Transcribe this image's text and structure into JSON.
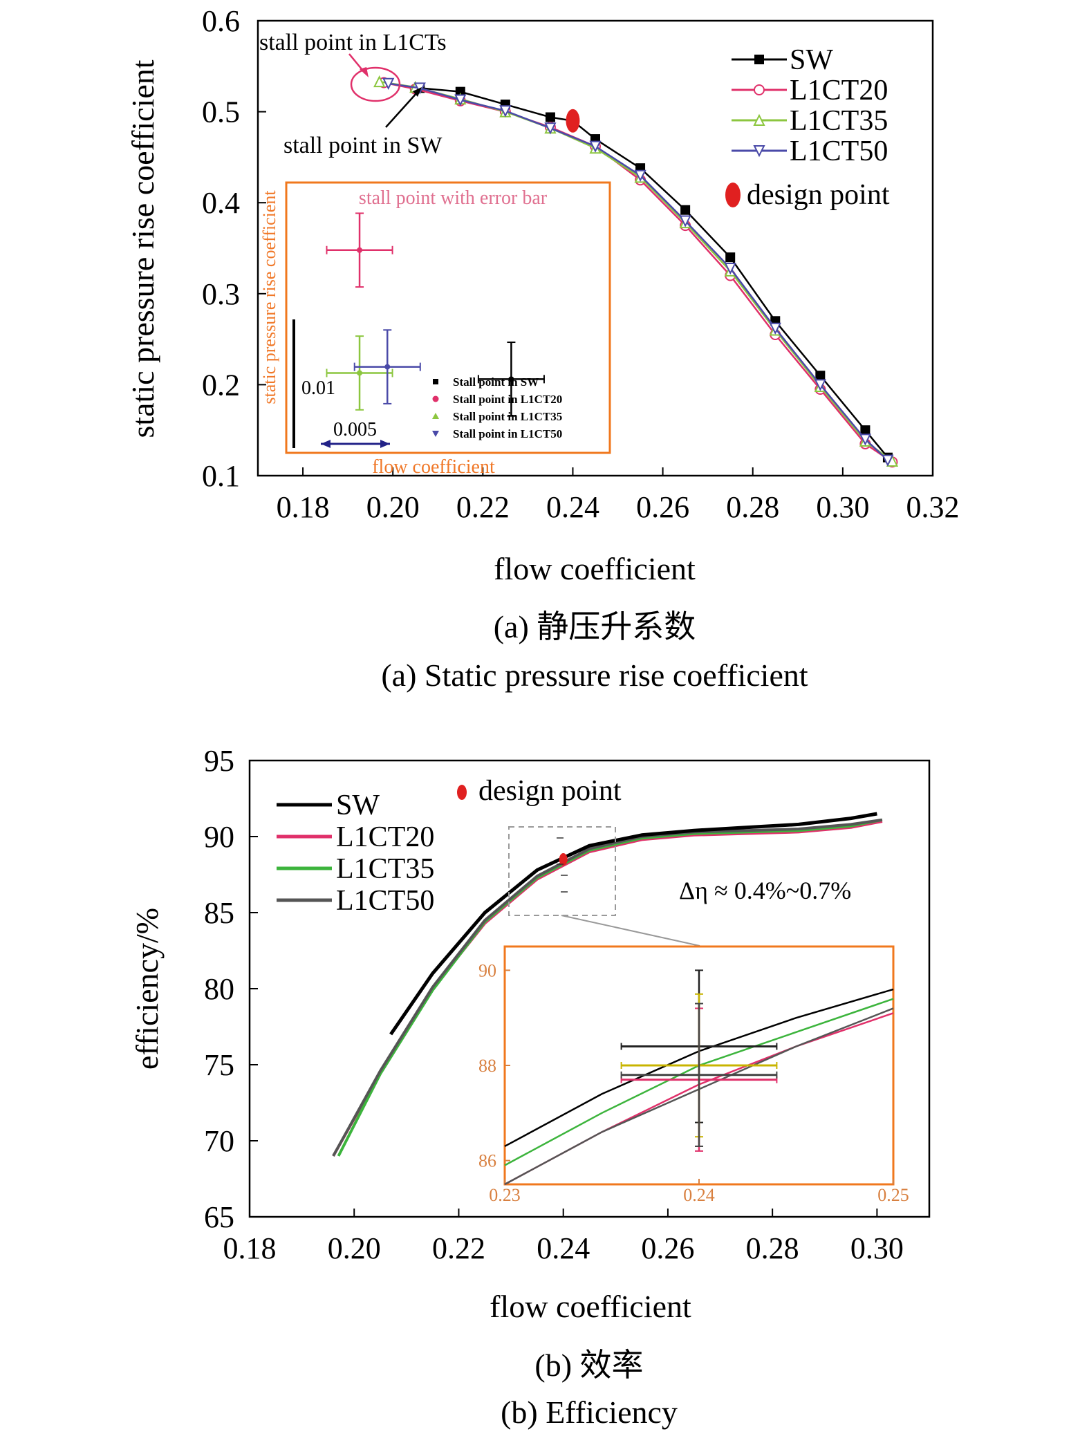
{
  "chart_data": [
    {
      "type": "line",
      "xlabel": "flow coefficient",
      "ylabel": "static pressure rise coefficient",
      "xlim": [
        0.17,
        0.32
      ],
      "ylim": [
        0.1,
        0.6
      ],
      "xticks": [
        "0.18",
        "0.20",
        "0.22",
        "0.24",
        "0.26",
        "0.28",
        "0.30",
        "0.32"
      ],
      "yticks": [
        "0.1",
        "0.2",
        "0.3",
        "0.4",
        "0.5",
        "0.6"
      ],
      "caption_cn": "(a) 静压升系数",
      "caption_en": "(a) Static pressure rise coefficient",
      "series": [
        {
          "name": "SW",
          "color": "#000000",
          "marker": "square-filled",
          "x": [
            0.206,
            0.215,
            0.225,
            0.235,
            0.24,
            0.245,
            0.255,
            0.265,
            0.275,
            0.285,
            0.295,
            0.305,
            0.31
          ],
          "y": [
            0.526,
            0.522,
            0.508,
            0.494,
            0.49,
            0.47,
            0.438,
            0.392,
            0.34,
            0.27,
            0.21,
            0.15,
            0.12
          ]
        },
        {
          "name": "L1CT20",
          "color": "#e0306a",
          "marker": "circle-open",
          "x": [
            0.198,
            0.205,
            0.215,
            0.225,
            0.235,
            0.245,
            0.255,
            0.265,
            0.275,
            0.285,
            0.295,
            0.305,
            0.311
          ],
          "y": [
            0.532,
            0.525,
            0.512,
            0.5,
            0.483,
            0.462,
            0.425,
            0.375,
            0.32,
            0.255,
            0.195,
            0.135,
            0.115
          ]
        },
        {
          "name": "L1CT35",
          "color": "#8cc63f",
          "marker": "triangle-up-open",
          "x": [
            0.197,
            0.205,
            0.215,
            0.225,
            0.235,
            0.245,
            0.255,
            0.265,
            0.275,
            0.285,
            0.295,
            0.305,
            0.311
          ],
          "y": [
            0.533,
            0.527,
            0.514,
            0.5,
            0.482,
            0.46,
            0.428,
            0.378,
            0.325,
            0.26,
            0.198,
            0.138,
            0.116
          ]
        },
        {
          "name": "L1CT50",
          "color": "#4a4aa8",
          "marker": "triangle-down-open",
          "x": [
            0.199,
            0.206,
            0.215,
            0.225,
            0.235,
            0.245,
            0.255,
            0.265,
            0.275,
            0.285,
            0.295,
            0.305,
            0.31
          ],
          "y": [
            0.531,
            0.526,
            0.513,
            0.501,
            0.482,
            0.462,
            0.43,
            0.38,
            0.328,
            0.262,
            0.2,
            0.14,
            0.117
          ]
        }
      ],
      "design_point": {
        "label": "design point",
        "x": 0.24,
        "y": 0.49,
        "color": "#e02020"
      },
      "annotations": {
        "stall_l1cts": "stall point in L1CTs",
        "stall_sw": "stall point in SW"
      },
      "inset": {
        "title": "stall point with error bar",
        "xlabel": "flow coefficient",
        "ylabel": "static pressure rise coefficient",
        "border_color": "#f0781e",
        "text_color": "#f07828",
        "scale_y_label": "0.01",
        "scale_x_label": "0.005",
        "legend": [
          "Stall point in SW",
          "Stall point in L1CT20",
          "Stall point in L1CT35",
          "Stall point in L1CT50"
        ],
        "points": [
          {
            "name": "SW",
            "color": "#000000",
            "x": 0.2275,
            "y": 0.52,
            "xerr": 0.0065,
            "yerr": 0.006
          },
          {
            "name": "L1CT20",
            "color": "#e0306a",
            "x": 0.1975,
            "y": 0.541,
            "xerr": 0.0065,
            "yerr": 0.006
          },
          {
            "name": "L1CT35",
            "color": "#8cc63f",
            "x": 0.1975,
            "y": 0.521,
            "xerr": 0.0065,
            "yerr": 0.006
          },
          {
            "name": "L1CT50",
            "color": "#4a4aa8",
            "x": 0.203,
            "y": 0.522,
            "xerr": 0.0065,
            "yerr": 0.006
          }
        ]
      }
    },
    {
      "type": "line",
      "xlabel": "flow coefficient",
      "ylabel": "efficiency/%",
      "xlim": [
        0.18,
        0.31
      ],
      "ylim": [
        65,
        95
      ],
      "xticks": [
        "0.18",
        "0.20",
        "0.22",
        "0.24",
        "0.26",
        "0.28",
        "0.30"
      ],
      "yticks": [
        "65",
        "70",
        "75",
        "80",
        "85",
        "90",
        "95"
      ],
      "caption_cn": "(b) 效率",
      "caption_en": "(b) Efficiency",
      "annotation_delta": "Δη ≈ 0.4%~0.7%",
      "series": [
        {
          "name": "SW",
          "color": "#000000",
          "x": [
            0.207,
            0.215,
            0.225,
            0.235,
            0.245,
            0.255,
            0.265,
            0.275,
            0.285,
            0.295,
            0.3
          ],
          "y": [
            77.0,
            81.0,
            85.0,
            87.8,
            89.4,
            90.1,
            90.4,
            90.6,
            90.8,
            91.2,
            91.5
          ]
        },
        {
          "name": "L1CT20",
          "color": "#e0306a",
          "x": [
            0.196,
            0.205,
            0.215,
            0.225,
            0.235,
            0.245,
            0.255,
            0.265,
            0.275,
            0.285,
            0.295,
            0.301
          ],
          "y": [
            69.0,
            74.5,
            80.0,
            84.3,
            87.2,
            89.0,
            89.8,
            90.1,
            90.2,
            90.3,
            90.6,
            91.0
          ]
        },
        {
          "name": "L1CT35",
          "color": "#3cb43c",
          "x": [
            0.197,
            0.205,
            0.215,
            0.225,
            0.235,
            0.245,
            0.255,
            0.265,
            0.275,
            0.285,
            0.295,
            0.301
          ],
          "y": [
            69.0,
            74.4,
            79.9,
            84.4,
            87.3,
            89.1,
            89.9,
            90.2,
            90.3,
            90.4,
            90.7,
            91.1
          ]
        },
        {
          "name": "L1CT50",
          "color": "#555555",
          "x": [
            0.196,
            0.205,
            0.215,
            0.225,
            0.235,
            0.245,
            0.255,
            0.265,
            0.275,
            0.285,
            0.295,
            0.301
          ],
          "y": [
            69.0,
            74.6,
            80.1,
            84.5,
            87.4,
            89.2,
            90.0,
            90.3,
            90.4,
            90.5,
            90.8,
            91.1
          ]
        }
      ],
      "design_point": {
        "label": "design point",
        "x": 0.24,
        "y": 88.5,
        "color": "#e02020"
      },
      "inset": {
        "xlim": [
          0.23,
          0.25
        ],
        "ylim": [
          85.5,
          90.5
        ],
        "xticks": [
          "0.23",
          "0.24",
          "0.25"
        ],
        "yticks": [
          "86",
          "88",
          "90"
        ],
        "border_color": "#f0781e",
        "tick_color": "#d88040",
        "curves": [
          {
            "name": "SW",
            "color": "#000000",
            "x": [
              0.23,
              0.235,
              0.24,
              0.245,
              0.25
            ],
            "y": [
              86.3,
              87.4,
              88.3,
              89.0,
              89.6
            ]
          },
          {
            "name": "L1CT20",
            "color": "#e0306a",
            "x": [
              0.23,
              0.235,
              0.24,
              0.245,
              0.25
            ],
            "y": [
              85.5,
              86.6,
              87.6,
              88.4,
              89.1
            ]
          },
          {
            "name": "L1CT35",
            "color": "#3cb43c",
            "x": [
              0.23,
              0.235,
              0.24,
              0.245,
              0.25
            ],
            "y": [
              85.9,
              87.0,
              88.0,
              88.7,
              89.4
            ]
          },
          {
            "name": "L1CT50",
            "color": "#555555",
            "x": [
              0.23,
              0.235,
              0.24,
              0.245,
              0.25
            ],
            "y": [
              85.5,
              86.6,
              87.5,
              88.4,
              89.2
            ]
          }
        ],
        "errorbars": [
          {
            "name": "SW",
            "color": "#222222",
            "x": 0.24,
            "y": 88.4,
            "xerr": 0.004,
            "yerr": 1.6
          },
          {
            "name": "L1CT20",
            "color": "#e0306a",
            "x": 0.24,
            "y": 87.7,
            "xerr": 0.004,
            "yerr": 1.5
          },
          {
            "name": "L1CT35",
            "color": "#c8b400",
            "x": 0.24,
            "y": 88.0,
            "xerr": 0.004,
            "yerr": 1.5
          },
          {
            "name": "L1CT50",
            "color": "#444444",
            "x": 0.24,
            "y": 87.8,
            "xerr": 0.004,
            "yerr": 1.5
          }
        ]
      }
    }
  ]
}
